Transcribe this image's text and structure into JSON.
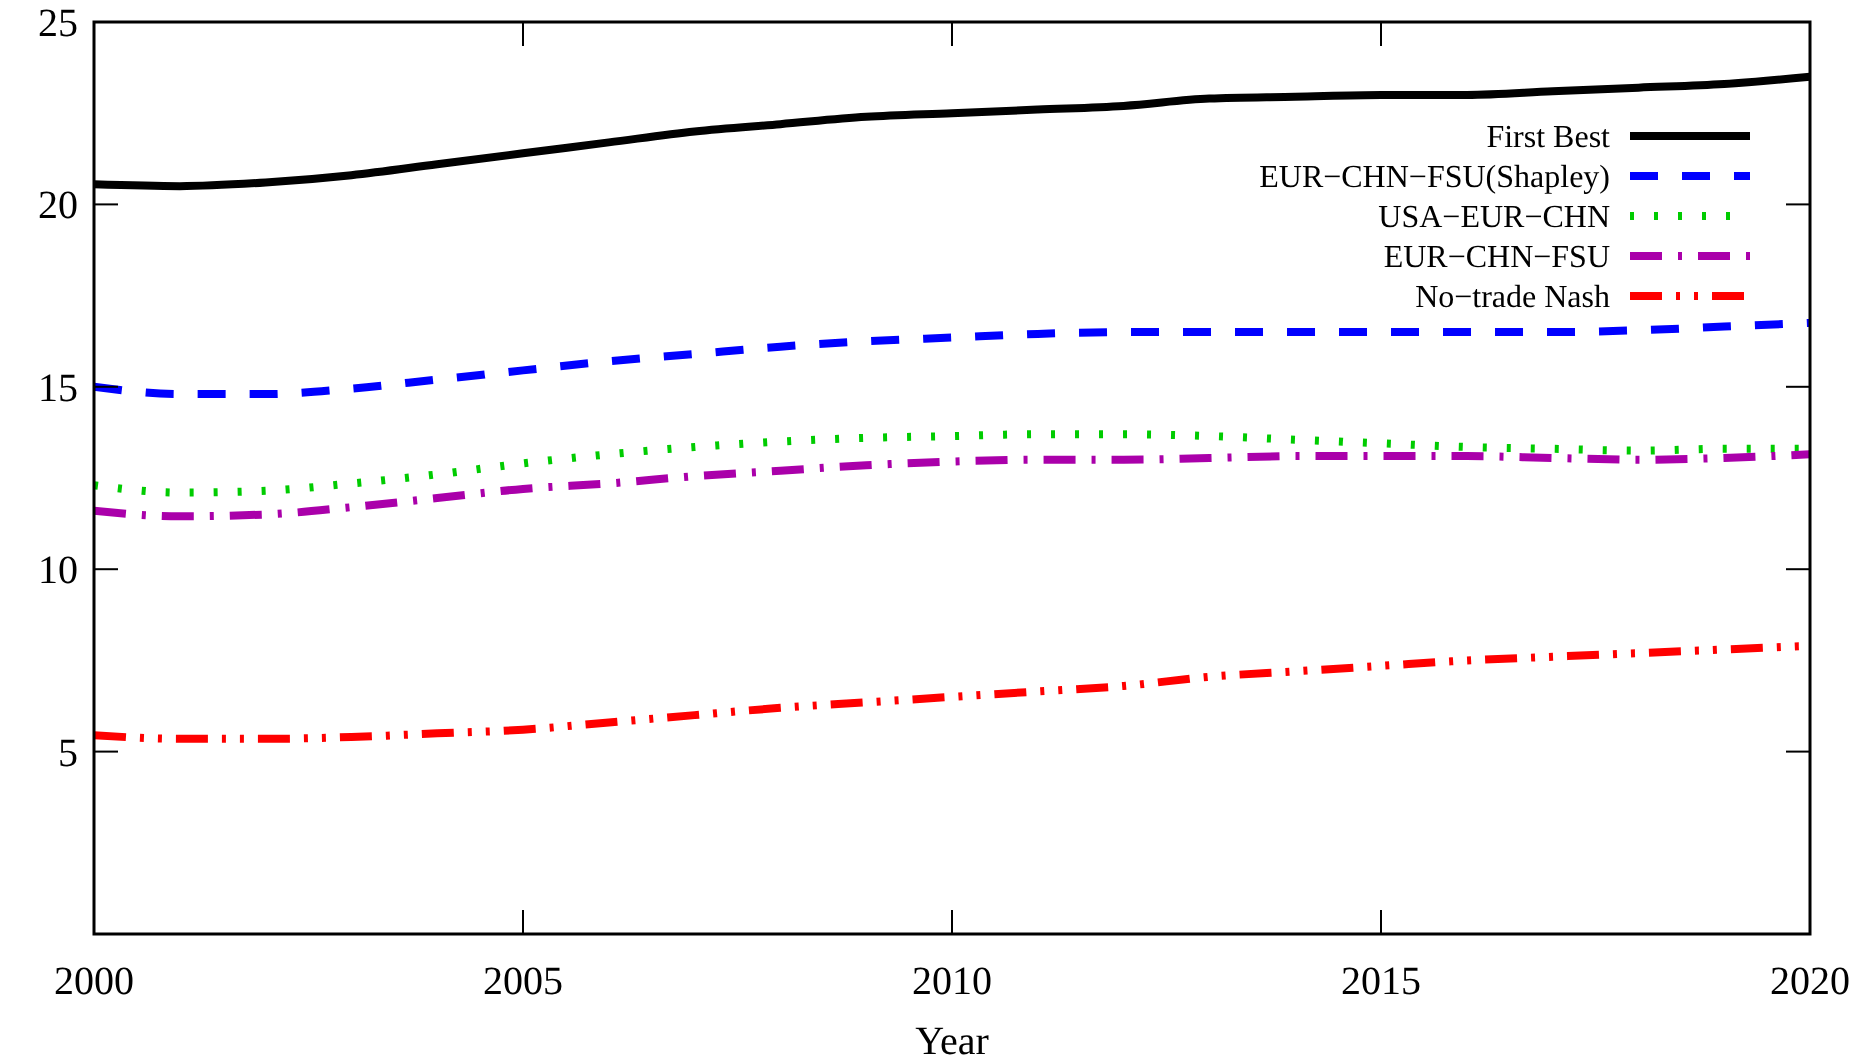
{
  "chart_data": {
    "type": "line",
    "xlabel": "Year",
    "x": [
      2000,
      2001,
      2002,
      2003,
      2004,
      2005,
      2006,
      2007,
      2008,
      2009,
      2010,
      2011,
      2012,
      2013,
      2014,
      2015,
      2016,
      2017,
      2018,
      2019,
      2020
    ],
    "xlim": [
      2000,
      2020
    ],
    "xticks": [
      2000,
      2005,
      2010,
      2015,
      2020
    ],
    "ylim": [
      0,
      25
    ],
    "yticks": [
      5,
      10,
      15,
      20,
      25
    ],
    "legend": "top right",
    "grid": false,
    "series": [
      {
        "name": "First Best",
        "color": "#000000",
        "line_style": "solid",
        "values": [
          20.55,
          20.5,
          20.6,
          20.8,
          21.1,
          21.4,
          21.7,
          22.0,
          22.2,
          22.4,
          22.5,
          22.6,
          22.7,
          22.9,
          22.95,
          23.0,
          23.0,
          23.1,
          23.2,
          23.3,
          23.5
        ]
      },
      {
        "name": "EUR−CHN−FSU(Shapley)",
        "color": "#0000ff",
        "line_style": "dashed",
        "values": [
          15.0,
          14.8,
          14.8,
          14.95,
          15.2,
          15.45,
          15.7,
          15.9,
          16.1,
          16.25,
          16.35,
          16.45,
          16.5,
          16.5,
          16.5,
          16.5,
          16.5,
          16.5,
          16.55,
          16.65,
          16.75
        ]
      },
      {
        "name": "USA−EUR−CHN",
        "color": "#00cc00",
        "line_style": "dotted",
        "values": [
          12.3,
          12.1,
          12.15,
          12.35,
          12.6,
          12.9,
          13.15,
          13.35,
          13.5,
          13.6,
          13.65,
          13.7,
          13.7,
          13.65,
          13.55,
          13.45,
          13.35,
          13.3,
          13.25,
          13.3,
          13.3
        ]
      },
      {
        "name": "EUR−CHN−FSU",
        "color": "#aa00aa",
        "line_style": "dashdot",
        "values": [
          11.6,
          11.45,
          11.5,
          11.7,
          11.95,
          12.2,
          12.35,
          12.55,
          12.7,
          12.85,
          12.95,
          13.0,
          13.0,
          13.05,
          13.1,
          13.1,
          13.1,
          13.05,
          13.0,
          13.05,
          13.15
        ]
      },
      {
        "name": "No−trade Nash",
        "color": "#ff0000",
        "line_style": "dashdotdot",
        "values": [
          5.45,
          5.35,
          5.35,
          5.4,
          5.5,
          5.6,
          5.8,
          6.0,
          6.2,
          6.35,
          6.5,
          6.65,
          6.8,
          7.05,
          7.2,
          7.35,
          7.5,
          7.6,
          7.7,
          7.8,
          7.9
        ]
      }
    ]
  }
}
